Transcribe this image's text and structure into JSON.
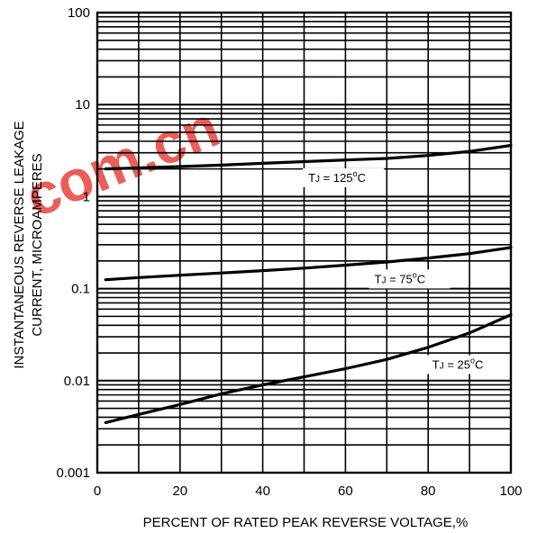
{
  "chart_data": {
    "type": "line",
    "xlabel": "PERCENT OF RATED PEAK REVERSE VOLTAGE,%",
    "ylabel_line1": "INSTANTANEOUS REVERSE LEAKAGE",
    "ylabel_line2": "CURRENT, MICROAMPERES",
    "xlim": [
      0,
      100
    ],
    "ylim": [
      0.001,
      100
    ],
    "yscale": "log",
    "grid": true,
    "x_ticks": [
      "0",
      "20",
      "40",
      "60",
      "80",
      "100"
    ],
    "y_ticks": [
      "0.001",
      "0.01",
      "0.1",
      "1",
      "10",
      "100"
    ],
    "series": [
      {
        "label_main": "T",
        "label_sub": "J",
        "label_rest": " = 125",
        "label_sup": "o",
        "label_unit": "C",
        "label_at": [
          51,
          1.45
        ],
        "x": [
          2,
          10,
          20,
          30,
          40,
          50,
          60,
          70,
          80,
          90,
          100
        ],
        "y": [
          2.0,
          2.05,
          2.12,
          2.2,
          2.3,
          2.4,
          2.5,
          2.6,
          2.8,
          3.1,
          3.6
        ]
      },
      {
        "label_main": "T",
        "label_sub": "J",
        "label_rest": " = 75",
        "label_sup": "o",
        "label_unit": "C",
        "label_at": [
          67,
          0.115
        ],
        "x": [
          2,
          10,
          20,
          30,
          40,
          50,
          60,
          70,
          80,
          90,
          100
        ],
        "y": [
          0.125,
          0.132,
          0.14,
          0.148,
          0.157,
          0.167,
          0.18,
          0.195,
          0.215,
          0.24,
          0.28
        ]
      },
      {
        "label_main": "T",
        "label_sub": "J",
        "label_rest": " = 25",
        "label_sup": "o",
        "label_unit": "C",
        "label_at": [
          81,
          0.0135
        ],
        "x": [
          2,
          10,
          20,
          30,
          40,
          50,
          60,
          70,
          80,
          90,
          100
        ],
        "y": [
          0.0035,
          0.0043,
          0.0055,
          0.0072,
          0.009,
          0.011,
          0.0135,
          0.017,
          0.023,
          0.033,
          0.052
        ]
      }
    ]
  },
  "watermark": {
    "brand": "com.cn",
    "color": "#e8423c"
  }
}
